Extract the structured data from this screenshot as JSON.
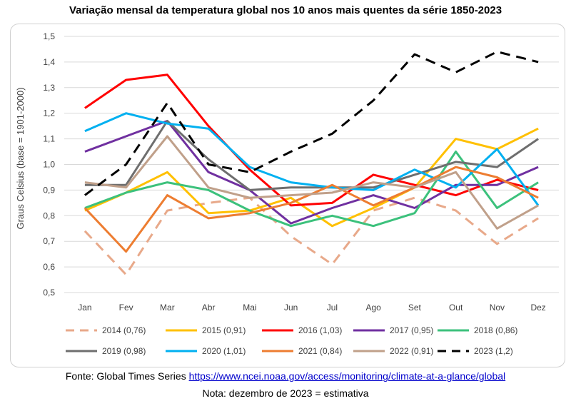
{
  "chart_data": {
    "type": "line",
    "title": "Variação mensal da temperatura global nos 10 anos mais quentes da série 1850-2023",
    "xlabel": "",
    "ylabel": "Graus Celsius (base = 1901-2000)",
    "categories": [
      "Jan",
      "Fev",
      "Mar",
      "Abr",
      "Mai",
      "Jun",
      "Jul",
      "Ago",
      "Set",
      "Out",
      "Nov",
      "Dez"
    ],
    "ylim": [
      0.5,
      1.5
    ],
    "yticks": [
      "0,5",
      "0,6",
      "0,7",
      "0,8",
      "0,9",
      "1,0",
      "1,1",
      "1,2",
      "1,3",
      "1,4",
      "1,5"
    ],
    "grid": true,
    "legend_position": "bottom",
    "series": [
      {
        "name": "2014 (0,76)",
        "color": "#e8a98a",
        "dashed": true,
        "values": [
          0.74,
          0.57,
          0.82,
          0.85,
          0.87,
          0.72,
          0.61,
          0.82,
          0.87,
          0.82,
          0.69,
          0.79
        ]
      },
      {
        "name": "2015 (0,91)",
        "color": "#ffc000",
        "dashed": false,
        "values": [
          0.82,
          0.89,
          0.97,
          0.81,
          0.82,
          0.87,
          0.76,
          0.83,
          0.91,
          1.1,
          1.06,
          1.14
        ]
      },
      {
        "name": "2016 (1,03)",
        "color": "#ff0000",
        "dashed": false,
        "values": [
          1.22,
          1.33,
          1.35,
          1.15,
          0.98,
          0.84,
          0.85,
          0.96,
          0.92,
          0.88,
          0.94,
          0.9
        ]
      },
      {
        "name": "2017 (0,95)",
        "color": "#7030a0",
        "dashed": false,
        "values": [
          1.05,
          1.11,
          1.17,
          0.97,
          0.9,
          0.77,
          0.83,
          0.88,
          0.83,
          0.92,
          0.92,
          0.99
        ]
      },
      {
        "name": "2018 (0,86)",
        "color": "#3cc17c",
        "dashed": false,
        "values": [
          0.83,
          0.89,
          0.93,
          0.9,
          0.82,
          0.76,
          0.8,
          0.76,
          0.81,
          1.05,
          0.83,
          0.93
        ]
      },
      {
        "name": "2019 (0,98)",
        "color": "#6e6e6e",
        "dashed": false,
        "values": [
          0.92,
          0.92,
          1.17,
          1.02,
          0.9,
          0.91,
          0.91,
          0.91,
          0.96,
          1.01,
          0.99,
          1.1
        ]
      },
      {
        "name": "2020 (1,01)",
        "color": "#00b0f0",
        "dashed": false,
        "values": [
          1.13,
          1.2,
          1.16,
          1.14,
          0.99,
          0.93,
          0.91,
          0.9,
          0.98,
          0.91,
          1.06,
          0.84
        ]
      },
      {
        "name": "2021 (0,84)",
        "color": "#ed7d31",
        "dashed": false,
        "values": [
          0.83,
          0.66,
          0.88,
          0.79,
          0.81,
          0.85,
          0.92,
          0.84,
          0.91,
          0.99,
          0.95,
          0.87
        ]
      },
      {
        "name": "2022 (0,91)",
        "color": "#c0a08a",
        "dashed": false,
        "values": [
          0.93,
          0.91,
          1.11,
          0.91,
          0.87,
          0.88,
          0.89,
          0.93,
          0.91,
          0.97,
          0.75,
          0.84
        ]
      },
      {
        "name": "2023 (1,2)",
        "color": "#000000",
        "dashed": true,
        "values": [
          0.88,
          1.0,
          1.24,
          1.0,
          0.97,
          1.05,
          1.12,
          1.25,
          1.43,
          1.36,
          1.44,
          1.4
        ]
      }
    ]
  },
  "footer": {
    "source_label": "Fonte: Global Times Series ",
    "source_url": "https://www.ncei.noaa.gov/access/monitoring/climate-at-a-glance/global",
    "note": "Nota: dezembro de 2023 = estimativa"
  }
}
